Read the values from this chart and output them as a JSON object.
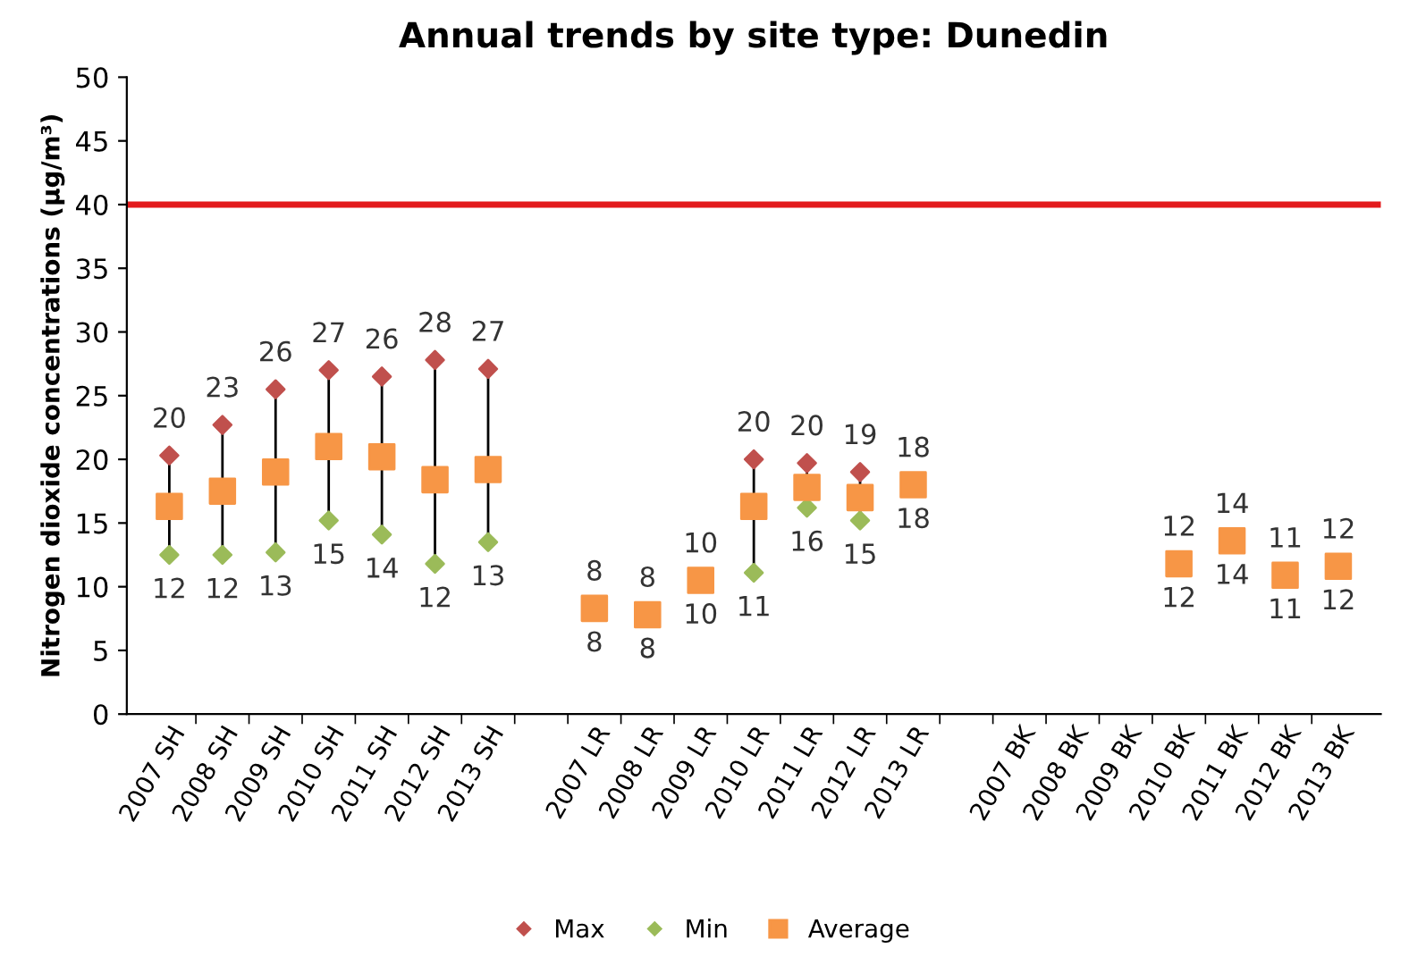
{
  "chart_data": {
    "type": "scatter",
    "title": "Annual trends by site type: Dunedin",
    "ylabel": "Nitrogen dioxide concentrations (µg/m³)",
    "categories": [
      "2007 SH",
      "2008 SH",
      "2009 SH",
      "2010 SH",
      "2011 SH",
      "2012 SH",
      "2013 SH",
      null,
      "2007 LR",
      "2008 LR",
      "2009 LR",
      "2010 LR",
      "2011 LR",
      "2012 LR",
      "2013 LR",
      null,
      "2007 BK",
      "2008 BK",
      "2009 BK",
      "2010 BK",
      "2011 BK",
      "2012 BK",
      "2013 BK"
    ],
    "series": [
      {
        "name": "Max",
        "color": "#c0504d",
        "marker": "diamond",
        "values": [
          20.3,
          22.7,
          25.5,
          27,
          26.5,
          27.8,
          27.1,
          null,
          null,
          null,
          null,
          20,
          19.7,
          19,
          null,
          null,
          null,
          null,
          null,
          null,
          null,
          null,
          null
        ],
        "value_labels": [
          "20",
          "23",
          "26",
          "27",
          "26",
          "28",
          "27",
          null,
          "8",
          "8",
          "10",
          "20",
          "20",
          "19",
          "18",
          null,
          null,
          null,
          null,
          "12",
          "14",
          "11",
          "12"
        ]
      },
      {
        "name": "Min",
        "color": "#9bbb59",
        "marker": "diamond",
        "values": [
          12.5,
          12.5,
          12.7,
          15.2,
          14.1,
          11.8,
          13.5,
          null,
          null,
          null,
          null,
          11.1,
          16.2,
          15.2,
          null,
          null,
          null,
          null,
          null,
          null,
          null,
          null,
          null
        ],
        "value_labels": [
          "12",
          "12",
          "13",
          "15",
          "14",
          "12",
          "13",
          null,
          "8",
          "8",
          "10",
          "11",
          "16",
          "15",
          "18",
          null,
          null,
          null,
          null,
          "12",
          "14",
          "11",
          "12"
        ]
      },
      {
        "name": "Average",
        "color": "#f79646",
        "marker": "square",
        "values": [
          16.3,
          17.5,
          19,
          21,
          20.2,
          18.4,
          19.2,
          null,
          8.3,
          7.8,
          10.5,
          16.3,
          17.8,
          17,
          18,
          null,
          null,
          null,
          null,
          11.8,
          13.6,
          10.9,
          11.6
        ]
      }
    ],
    "ylim": [
      0,
      50
    ],
    "yticks": [
      0,
      5,
      10,
      15,
      20,
      25,
      30,
      35,
      40,
      45,
      50
    ],
    "ref_lines": [
      {
        "axis": "y",
        "value": 40,
        "color": "#e31a1c"
      }
    ],
    "grid": false,
    "legend": "bottom"
  }
}
